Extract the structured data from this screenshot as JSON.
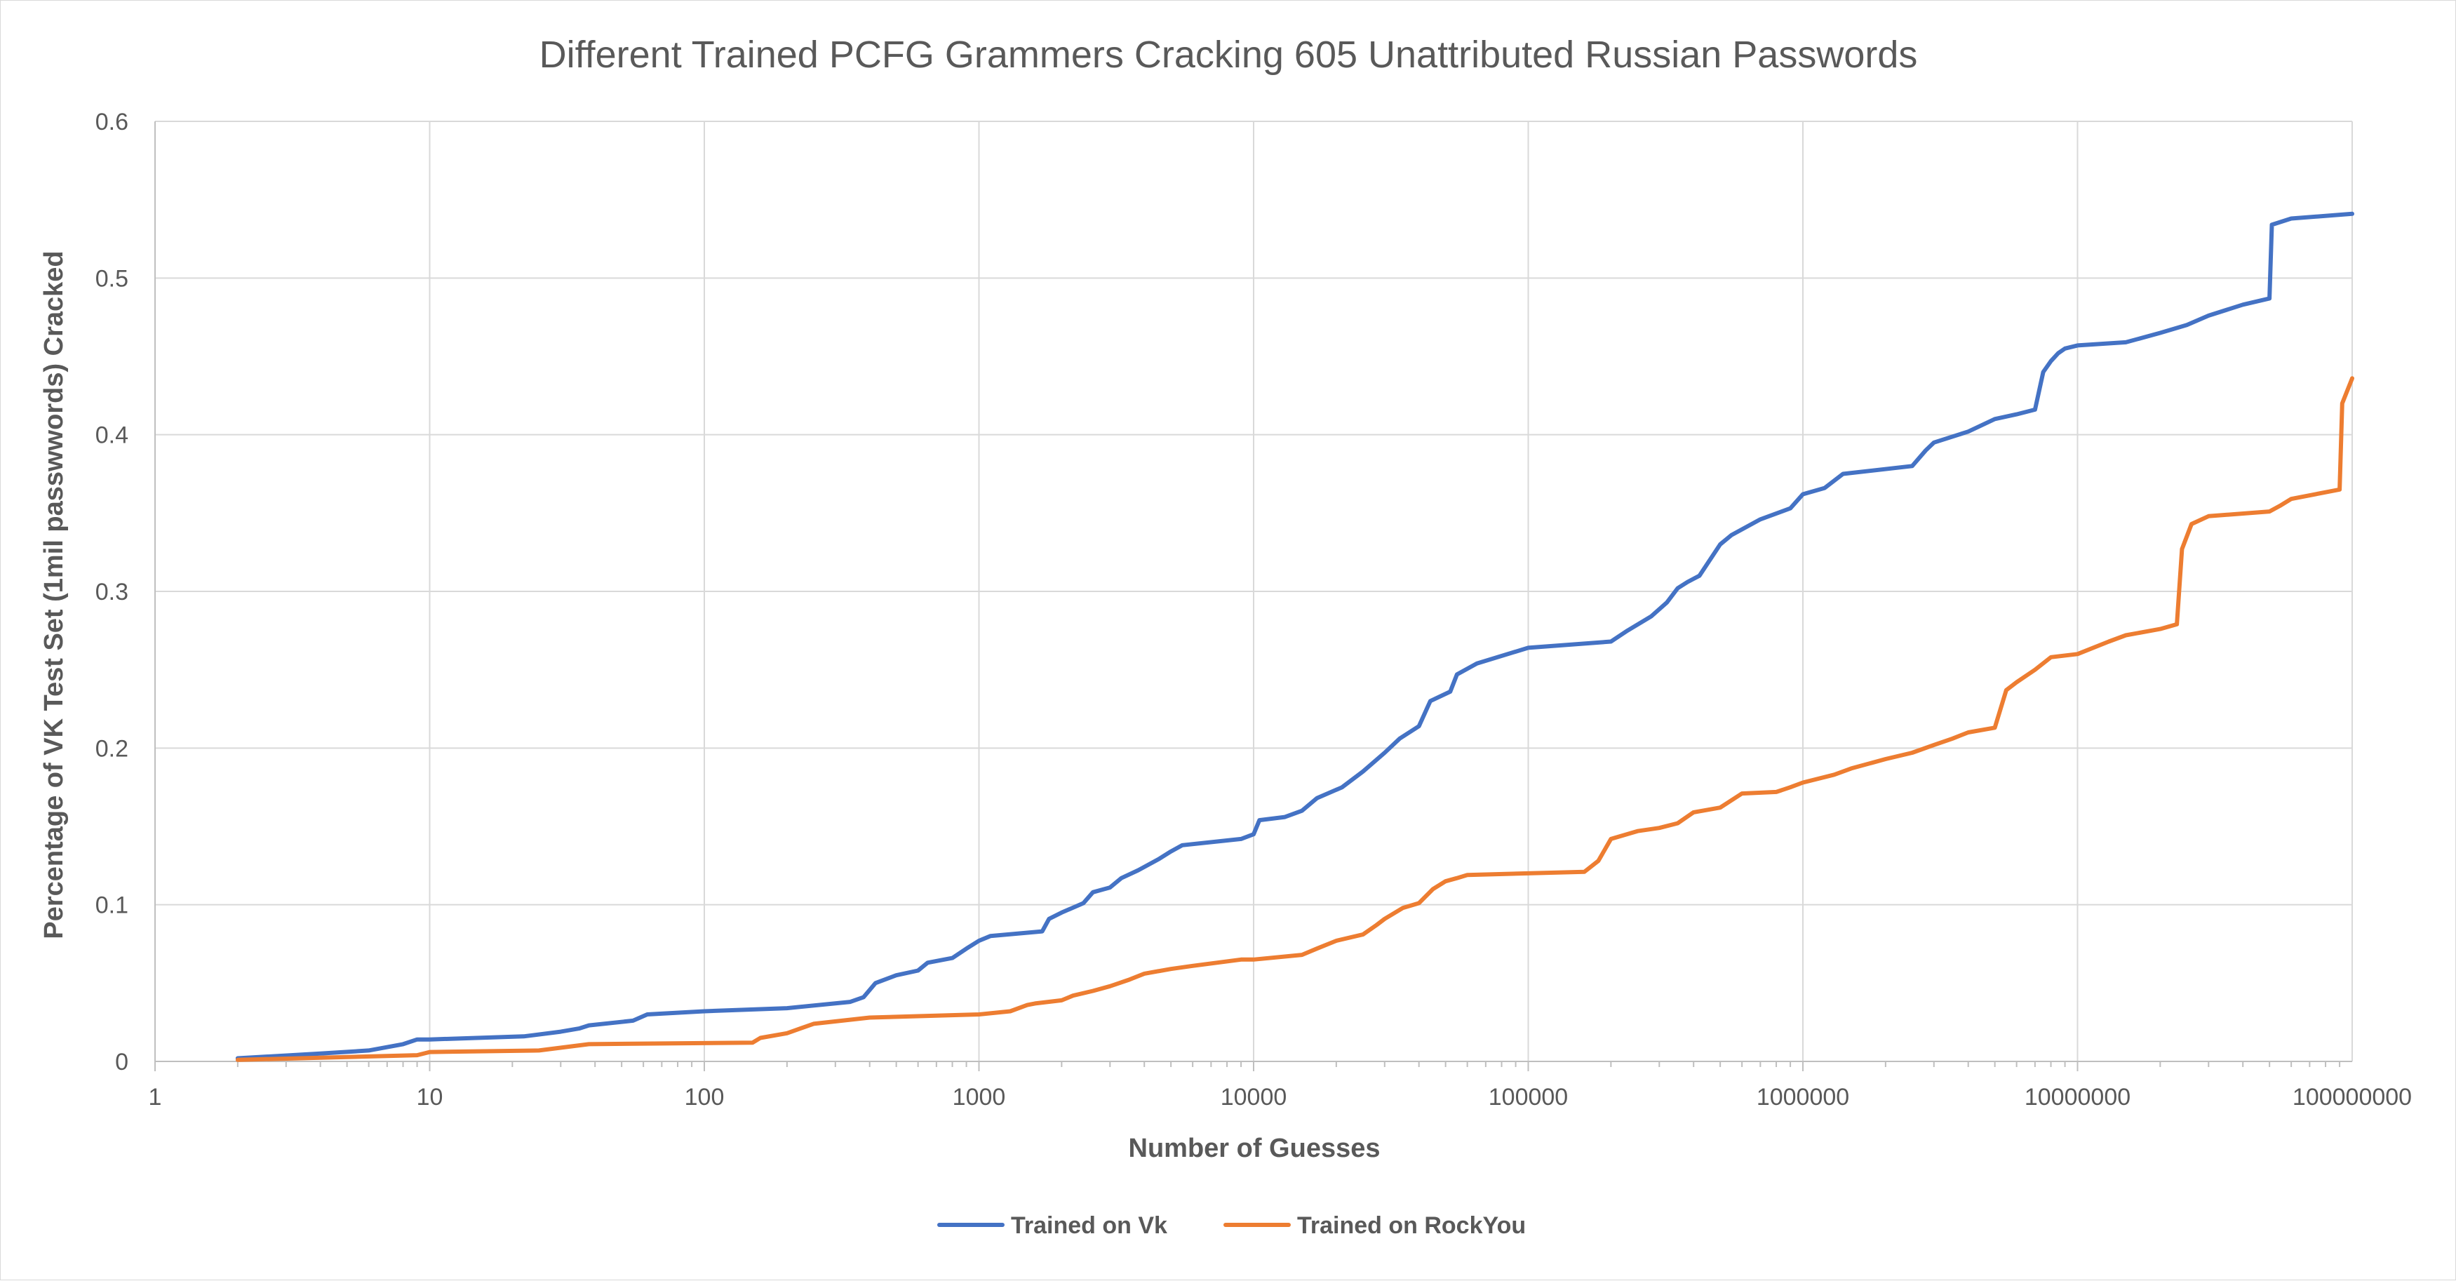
{
  "chart_data": {
    "type": "line",
    "title": "Different Trained PCFG Grammers Cracking 605 Unattributed Russian Passwords",
    "xlabel": "Number of Guesses",
    "ylabel": "Percentage of VK Test Set (1mil passwwords) Cracked",
    "x_scale": "log",
    "xlim": [
      1,
      100000000
    ],
    "ylim": [
      0,
      0.6
    ],
    "x_ticks": [
      "1",
      "10",
      "100",
      "1000",
      "10000",
      "100000",
      "1000000",
      "10000000",
      "100000000"
    ],
    "y_ticks": [
      "0",
      "0.1",
      "0.2",
      "0.3",
      "0.4",
      "0.5",
      "0.6"
    ],
    "grid": true,
    "legend_position": "bottom",
    "series": [
      {
        "name": "Trained on Vk",
        "color": "#4472c4",
        "x": [
          2,
          4,
          6,
          8,
          9,
          10,
          22,
          30,
          35,
          38,
          55,
          62,
          100,
          200,
          340,
          380,
          420,
          500,
          600,
          650,
          800,
          900,
          1000,
          1100,
          1700,
          1800,
          2000,
          2400,
          2600,
          3000,
          3300,
          3800,
          4500,
          5000,
          5500,
          9000,
          10000,
          10500,
          13000,
          15000,
          17000,
          21000,
          25000,
          30000,
          34000,
          40000,
          44000,
          52000,
          55000,
          65000,
          100000,
          200000,
          230000,
          280000,
          320000,
          350000,
          380000,
          420000,
          500000,
          550000,
          700000,
          900000,
          1000000,
          1200000,
          1400000,
          2500000,
          2800000,
          3000000,
          4000000,
          5000000,
          6000000,
          7000000,
          7500000,
          8000000,
          8500000,
          9000000,
          10000000,
          15000000,
          20000000,
          25000000,
          30000000,
          40000000,
          50000000,
          51000000,
          60000000,
          100000000
        ],
        "values": [
          0.002,
          0.005,
          0.007,
          0.011,
          0.014,
          0.014,
          0.016,
          0.019,
          0.021,
          0.023,
          0.026,
          0.03,
          0.032,
          0.034,
          0.038,
          0.041,
          0.05,
          0.055,
          0.058,
          0.063,
          0.066,
          0.072,
          0.077,
          0.08,
          0.083,
          0.091,
          0.095,
          0.101,
          0.108,
          0.111,
          0.117,
          0.122,
          0.129,
          0.134,
          0.138,
          0.142,
          0.145,
          0.154,
          0.156,
          0.16,
          0.168,
          0.175,
          0.185,
          0.197,
          0.206,
          0.214,
          0.23,
          0.236,
          0.247,
          0.254,
          0.264,
          0.268,
          0.275,
          0.284,
          0.293,
          0.302,
          0.306,
          0.31,
          0.33,
          0.336,
          0.346,
          0.353,
          0.362,
          0.366,
          0.375,
          0.38,
          0.39,
          0.395,
          0.402,
          0.41,
          0.413,
          0.416,
          0.44,
          0.447,
          0.452,
          0.455,
          0.457,
          0.459,
          0.465,
          0.47,
          0.476,
          0.483,
          0.487,
          0.534,
          0.538,
          0.541
        ]
      },
      {
        "name": "Trained on RockYou",
        "color": "#ed7d31",
        "x": [
          2,
          9,
          10,
          25,
          38,
          150,
          160,
          200,
          250,
          400,
          1000,
          1300,
          1500,
          1600,
          2000,
          2200,
          2600,
          3000,
          3500,
          4000,
          5000,
          6000,
          9000,
          10000,
          15000,
          17000,
          20000,
          25000,
          28000,
          30000,
          35000,
          40000,
          45000,
          50000,
          55000,
          60000,
          160000,
          180000,
          200000,
          250000,
          300000,
          350000,
          400000,
          500000,
          600000,
          800000,
          900000,
          1000000,
          1300000,
          1500000,
          2000000,
          2500000,
          3000000,
          3500000,
          4000000,
          5000000,
          5500000,
          6000000,
          7000000,
          8000000,
          10000000,
          13000000,
          15000000,
          20000000,
          23000000,
          24000000,
          26000000,
          30000000,
          50000000,
          55000000,
          60000000,
          90000000,
          92000000,
          100000000
        ],
        "values": [
          0.001,
          0.004,
          0.006,
          0.007,
          0.011,
          0.012,
          0.015,
          0.018,
          0.024,
          0.028,
          0.03,
          0.032,
          0.036,
          0.037,
          0.039,
          0.042,
          0.045,
          0.048,
          0.052,
          0.056,
          0.059,
          0.061,
          0.065,
          0.065,
          0.068,
          0.072,
          0.077,
          0.081,
          0.087,
          0.091,
          0.098,
          0.101,
          0.11,
          0.115,
          0.117,
          0.119,
          0.121,
          0.128,
          0.142,
          0.147,
          0.149,
          0.152,
          0.159,
          0.162,
          0.171,
          0.172,
          0.175,
          0.178,
          0.183,
          0.187,
          0.193,
          0.197,
          0.202,
          0.206,
          0.21,
          0.213,
          0.237,
          0.242,
          0.25,
          0.258,
          0.26,
          0.268,
          0.272,
          0.276,
          0.279,
          0.327,
          0.343,
          0.348,
          0.351,
          0.355,
          0.359,
          0.365,
          0.42,
          0.436
        ]
      }
    ]
  }
}
